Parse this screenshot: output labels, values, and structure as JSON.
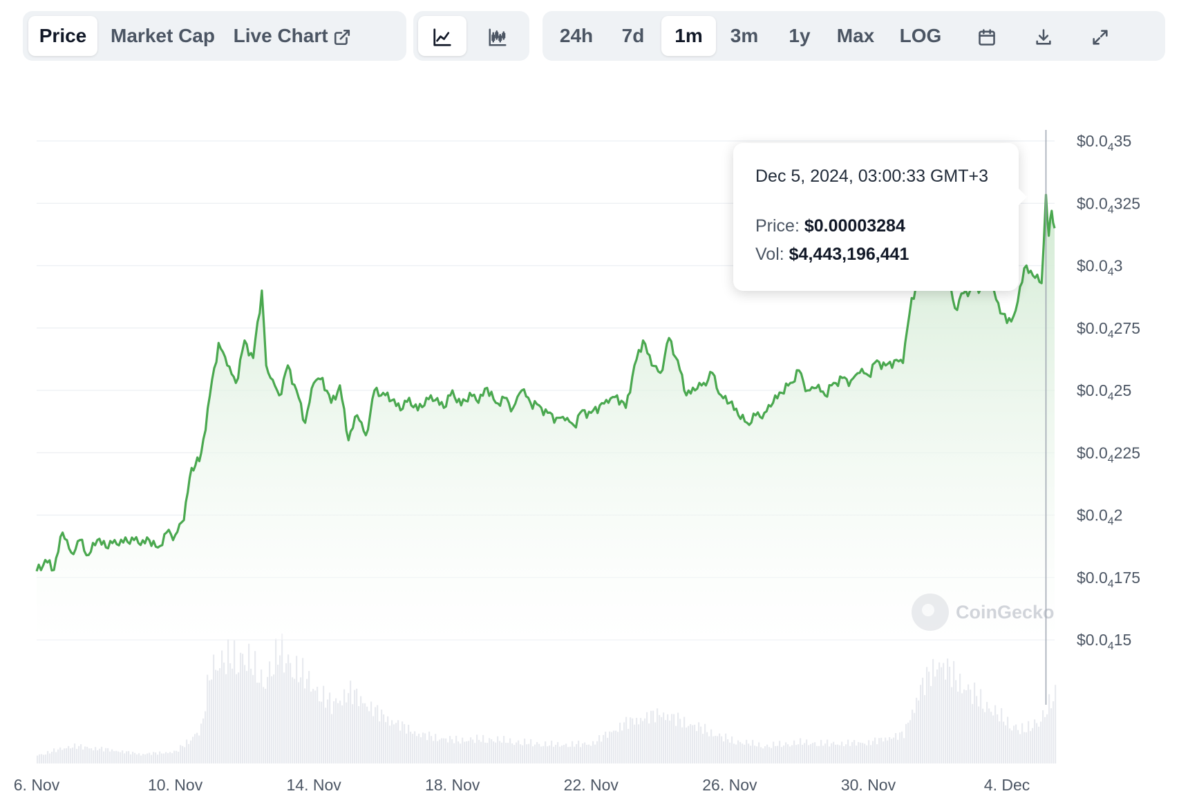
{
  "toolbar": {
    "type_tabs": [
      "Price",
      "Market Cap",
      "Live Chart"
    ],
    "active_type": "Price",
    "chart_modes": [
      "line-chart-icon",
      "candlestick-chart-icon"
    ],
    "active_mode": "line-chart-icon",
    "ranges": [
      "24h",
      "7d",
      "1m",
      "3m",
      "1y",
      "Max",
      "LOG"
    ],
    "active_range": "1m",
    "actions": [
      "calendar-icon",
      "download-icon",
      "fullscreen-icon"
    ]
  },
  "tooltip": {
    "date": "Dec 5, 2024, 03:00:33 GMT+3",
    "price_label": "Price:",
    "price_value": "$0.00003284",
    "vol_label": "Vol:",
    "vol_value": "$4,443,196,441"
  },
  "watermark": "CoinGecko",
  "colors": {
    "line": "#4aa84f",
    "area_top": "#d5ecd6",
    "volume": "#e8eaef",
    "grid": "#eceff3"
  },
  "chart_data": {
    "type": "area",
    "title": "",
    "xlabel": "",
    "ylabel": "",
    "y_axis_ticks": [
      {
        "pre": "$0.0",
        "sub": "4",
        "post": "15",
        "value": 1.5e-05
      },
      {
        "pre": "$0.0",
        "sub": "4",
        "post": "175",
        "value": 1.75e-05
      },
      {
        "pre": "$0.0",
        "sub": "4",
        "post": "2",
        "value": 2e-05
      },
      {
        "pre": "$0.0",
        "sub": "4",
        "post": "225",
        "value": 2.25e-05
      },
      {
        "pre": "$0.0",
        "sub": "4",
        "post": "25",
        "value": 2.5e-05
      },
      {
        "pre": "$0.0",
        "sub": "4",
        "post": "275",
        "value": 2.75e-05
      },
      {
        "pre": "$0.0",
        "sub": "4",
        "post": "3",
        "value": 3e-05
      },
      {
        "pre": "$0.0",
        "sub": "4",
        "post": "325",
        "value": 3.25e-05
      },
      {
        "pre": "$0.0",
        "sub": "4",
        "post": "35",
        "value": 3.5e-05
      }
    ],
    "ylim": [
      1.5e-05,
      3.5e-05
    ],
    "x_axis_ticks": [
      {
        "label": "6. Nov",
        "date": "2024-11-06"
      },
      {
        "label": "10. Nov",
        "date": "2024-11-10"
      },
      {
        "label": "14. Nov",
        "date": "2024-11-14"
      },
      {
        "label": "18. Nov",
        "date": "2024-11-18"
      },
      {
        "label": "22. Nov",
        "date": "2024-11-22"
      },
      {
        "label": "26. Nov",
        "date": "2024-11-26"
      },
      {
        "label": "30. Nov",
        "date": "2024-11-30"
      },
      {
        "label": "4. Dec",
        "date": "2024-12-04"
      }
    ],
    "xlim": [
      "2024-11-06",
      "2024-12-05 09:00"
    ],
    "grid": true,
    "series": [
      {
        "points": [
          [
            "2024-11-06 00:00",
            1.775e-05
          ],
          [
            "2024-11-06 06:00",
            1.82e-05
          ],
          [
            "2024-11-06 12:00",
            1.78e-05
          ],
          [
            "2024-11-06 18:00",
            1.93e-05
          ],
          [
            "2024-11-07 00:00",
            1.85e-05
          ],
          [
            "2024-11-07 06:00",
            1.9e-05
          ],
          [
            "2024-11-07 12:00",
            1.84e-05
          ],
          [
            "2024-11-07 18:00",
            1.9e-05
          ],
          [
            "2024-11-08 00:00",
            1.87e-05
          ],
          [
            "2024-11-08 06:00",
            1.9e-05
          ],
          [
            "2024-11-08 12:00",
            1.89e-05
          ],
          [
            "2024-11-08 18:00",
            1.91e-05
          ],
          [
            "2024-11-09 00:00",
            1.88e-05
          ],
          [
            "2024-11-09 06:00",
            1.9e-05
          ],
          [
            "2024-11-09 12:00",
            1.87e-05
          ],
          [
            "2024-11-09 18:00",
            1.93e-05
          ],
          [
            "2024-11-10 00:00",
            1.92e-05
          ],
          [
            "2024-11-10 06:00",
            1.98e-05
          ],
          [
            "2024-11-10 10:00",
            2.15e-05
          ],
          [
            "2024-11-10 14:00",
            2.2e-05
          ],
          [
            "2024-11-10 18:00",
            2.25e-05
          ],
          [
            "2024-11-11 00:00",
            2.48e-05
          ],
          [
            "2024-11-11 06:00",
            2.69e-05
          ],
          [
            "2024-11-11 12:00",
            2.6e-05
          ],
          [
            "2024-11-11 18:00",
            2.53e-05
          ],
          [
            "2024-11-12 00:00",
            2.7e-05
          ],
          [
            "2024-11-12 06:00",
            2.63e-05
          ],
          [
            "2024-11-12 12:00",
            2.9e-05
          ],
          [
            "2024-11-12 15:00",
            2.6e-05
          ],
          [
            "2024-11-12 18:00",
            2.55e-05
          ],
          [
            "2024-11-13 00:00",
            2.48e-05
          ],
          [
            "2024-11-13 06:00",
            2.6e-05
          ],
          [
            "2024-11-13 12:00",
            2.5e-05
          ],
          [
            "2024-11-13 18:00",
            2.37e-05
          ],
          [
            "2024-11-14 00:00",
            2.53e-05
          ],
          [
            "2024-11-14 06:00",
            2.55e-05
          ],
          [
            "2024-11-14 12:00",
            2.45e-05
          ],
          [
            "2024-11-14 18:00",
            2.52e-05
          ],
          [
            "2024-11-15 00:00",
            2.3e-05
          ],
          [
            "2024-11-15 06:00",
            2.4e-05
          ],
          [
            "2024-11-15 12:00",
            2.32e-05
          ],
          [
            "2024-11-15 18:00",
            2.5e-05
          ],
          [
            "2024-11-16 00:00",
            2.49e-05
          ],
          [
            "2024-11-16 06:00",
            2.46e-05
          ],
          [
            "2024-11-16 12:00",
            2.42e-05
          ],
          [
            "2024-11-16 18:00",
            2.47e-05
          ],
          [
            "2024-11-17 00:00",
            2.42e-05
          ],
          [
            "2024-11-17 06:00",
            2.47e-05
          ],
          [
            "2024-11-17 12:00",
            2.46e-05
          ],
          [
            "2024-11-17 18:00",
            2.43e-05
          ],
          [
            "2024-11-18 00:00",
            2.5e-05
          ],
          [
            "2024-11-18 06:00",
            2.44e-05
          ],
          [
            "2024-11-18 12:00",
            2.49e-05
          ],
          [
            "2024-11-18 18:00",
            2.45e-05
          ],
          [
            "2024-11-19 00:00",
            2.51e-05
          ],
          [
            "2024-11-19 06:00",
            2.45e-05
          ],
          [
            "2024-11-19 12:00",
            2.47e-05
          ],
          [
            "2024-11-19 18:00",
            2.43e-05
          ],
          [
            "2024-11-20 00:00",
            2.5e-05
          ],
          [
            "2024-11-20 06:00",
            2.45e-05
          ],
          [
            "2024-11-20 12:00",
            2.44e-05
          ],
          [
            "2024-11-20 18:00",
            2.41e-05
          ],
          [
            "2024-11-21 00:00",
            2.39e-05
          ],
          [
            "2024-11-21 06:00",
            2.38e-05
          ],
          [
            "2024-11-21 12:00",
            2.36e-05
          ],
          [
            "2024-11-21 18:00",
            2.42e-05
          ],
          [
            "2024-11-22 00:00",
            2.41e-05
          ],
          [
            "2024-11-22 06:00",
            2.44e-05
          ],
          [
            "2024-11-22 12:00",
            2.45e-05
          ],
          [
            "2024-11-22 18:00",
            2.48e-05
          ],
          [
            "2024-11-23 00:00",
            2.43e-05
          ],
          [
            "2024-11-23 06:00",
            2.6e-05
          ],
          [
            "2024-11-23 12:00",
            2.7e-05
          ],
          [
            "2024-11-23 18:00",
            2.6e-05
          ],
          [
            "2024-11-24 00:00",
            2.57e-05
          ],
          [
            "2024-11-24 06:00",
            2.71e-05
          ],
          [
            "2024-11-24 12:00",
            2.62e-05
          ],
          [
            "2024-11-24 18:00",
            2.48e-05
          ],
          [
            "2024-11-25 00:00",
            2.5e-05
          ],
          [
            "2024-11-25 06:00",
            2.53e-05
          ],
          [
            "2024-11-25 12:00",
            2.57e-05
          ],
          [
            "2024-11-25 18:00",
            2.48e-05
          ],
          [
            "2024-11-26 00:00",
            2.45e-05
          ],
          [
            "2024-11-26 06:00",
            2.4e-05
          ],
          [
            "2024-11-26 12:00",
            2.37e-05
          ],
          [
            "2024-11-26 18:00",
            2.4e-05
          ],
          [
            "2024-11-27 00:00",
            2.41e-05
          ],
          [
            "2024-11-27 06:00",
            2.45e-05
          ],
          [
            "2024-11-27 12:00",
            2.49e-05
          ],
          [
            "2024-11-27 18:00",
            2.53e-05
          ],
          [
            "2024-11-28 00:00",
            2.58e-05
          ],
          [
            "2024-11-28 06:00",
            2.5e-05
          ],
          [
            "2024-11-28 12:00",
            2.51e-05
          ],
          [
            "2024-11-28 18:00",
            2.48e-05
          ],
          [
            "2024-11-29 00:00",
            2.53e-05
          ],
          [
            "2024-11-29 06:00",
            2.55e-05
          ],
          [
            "2024-11-29 12:00",
            2.54e-05
          ],
          [
            "2024-11-29 18:00",
            2.57e-05
          ],
          [
            "2024-11-30 00:00",
            2.56e-05
          ],
          [
            "2024-11-30 06:00",
            2.62e-05
          ],
          [
            "2024-11-30 12:00",
            2.6e-05
          ],
          [
            "2024-11-30 18:00",
            2.62e-05
          ],
          [
            "2024-12-01 00:00",
            2.61e-05
          ],
          [
            "2024-12-01 06:00",
            2.87e-05
          ],
          [
            "2024-12-01 12:00",
            2.95e-05
          ],
          [
            "2024-12-01 18:00",
            2.92e-05
          ],
          [
            "2024-12-02 00:00",
            2.94e-05
          ],
          [
            "2024-12-02 06:00",
            2.98e-05
          ],
          [
            "2024-12-02 12:00",
            2.83e-05
          ],
          [
            "2024-12-02 18:00",
            2.89e-05
          ],
          [
            "2024-12-03 00:00",
            2.91e-05
          ],
          [
            "2024-12-03 06:00",
            2.91e-05
          ],
          [
            "2024-12-03 12:00",
            2.92e-05
          ],
          [
            "2024-12-03 18:00",
            2.85e-05
          ],
          [
            "2024-12-04 00:00",
            2.77e-05
          ],
          [
            "2024-12-04 06:00",
            2.82e-05
          ],
          [
            "2024-12-04 12:00",
            2.99e-05
          ],
          [
            "2024-12-04 18:00",
            2.96e-05
          ],
          [
            "2024-12-05 00:00",
            2.93e-05
          ],
          [
            "2024-12-05 03:00",
            3.284e-05
          ],
          [
            "2024-12-05 05:00",
            3.12e-05
          ],
          [
            "2024-12-05 07:00",
            3.22e-05
          ],
          [
            "2024-12-05 09:00",
            3.15e-05
          ]
        ]
      }
    ],
    "volume": [
      [
        "2024-11-06",
        0.7
      ],
      [
        "2024-11-07",
        1.5
      ],
      [
        "2024-11-08",
        1.2
      ],
      [
        "2024-11-09",
        0.8
      ],
      [
        "2024-11-10",
        1.0
      ],
      [
        "2024-11-10 18:00",
        3.0
      ],
      [
        "2024-11-11",
        8.5
      ],
      [
        "2024-11-12",
        9.3
      ],
      [
        "2024-11-12 12:00",
        7.0
      ],
      [
        "2024-11-13",
        9.6
      ],
      [
        "2024-11-14",
        6.5
      ],
      [
        "2024-11-14 12:00",
        5.0
      ],
      [
        "2024-11-15",
        6.2
      ],
      [
        "2024-11-16",
        4.0
      ],
      [
        "2024-11-17",
        2.5
      ],
      [
        "2024-11-18",
        2.0
      ],
      [
        "2024-11-19",
        2.1
      ],
      [
        "2024-11-20",
        1.8
      ],
      [
        "2024-11-21",
        1.6
      ],
      [
        "2024-11-22",
        1.7
      ],
      [
        "2024-11-23",
        3.5
      ],
      [
        "2024-11-24",
        4.3
      ],
      [
        "2024-11-25",
        3.2
      ],
      [
        "2024-11-26",
        2.0
      ],
      [
        "2024-11-27",
        1.5
      ],
      [
        "2024-11-28",
        1.8
      ],
      [
        "2024-11-29",
        1.7
      ],
      [
        "2024-11-30",
        1.8
      ],
      [
        "2024-12-01",
        2.5
      ],
      [
        "2024-12-01 12:00",
        6.5
      ],
      [
        "2024-12-02",
        8.7
      ],
      [
        "2024-12-03",
        6.0
      ],
      [
        "2024-12-04",
        3.5
      ],
      [
        "2024-12-04 12:00",
        2.8
      ],
      [
        "2024-12-05",
        4.0
      ],
      [
        "2024-12-05 09:00",
        5.8
      ]
    ],
    "hover": {
      "date": "2024-12-05 03:00:33",
      "price": 3.284e-05
    }
  }
}
